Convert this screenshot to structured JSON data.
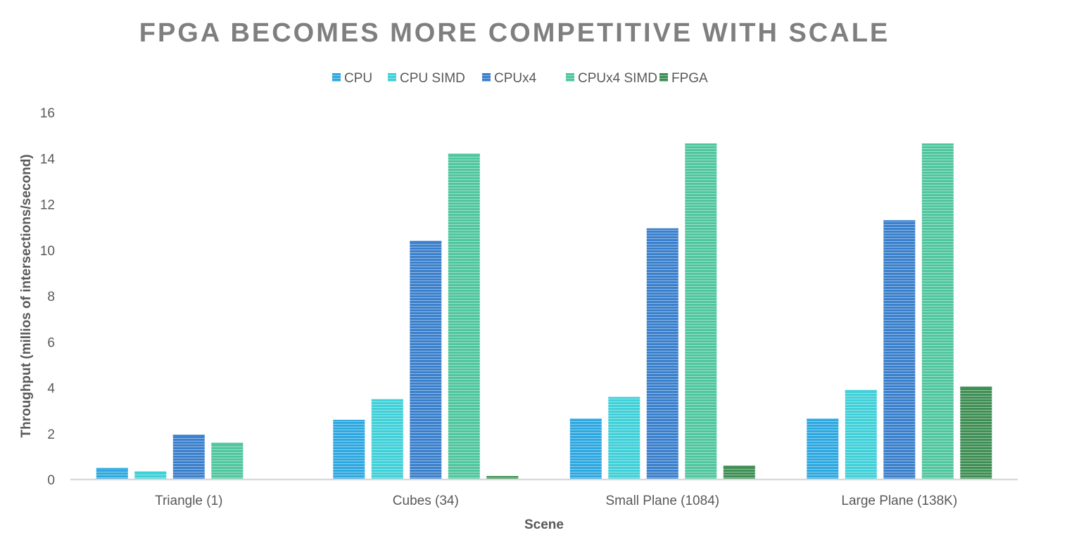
{
  "chart_data": {
    "type": "bar",
    "title": "FPGA BECOMES MORE COMPETITIVE WITH SCALE",
    "xlabel": "Scene",
    "ylabel": "Throughput (millios of intersections/second)",
    "categories": [
      "Triangle (1)",
      "Cubes (34)",
      "Small Plane (1084)",
      "Large Plane (138K)"
    ],
    "ylim": [
      0,
      16
    ],
    "yticks": [
      "0",
      "2",
      "4",
      "6",
      "8",
      "10",
      "12",
      "14",
      "16"
    ],
    "grid": false,
    "legend_position": "top",
    "series": [
      {
        "name": "CPU",
        "color": "#2ea8e0",
        "values": [
          0.5,
          2.6,
          2.65,
          2.65
        ]
      },
      {
        "name": "CPU SIMD",
        "color": "#3fd0d8",
        "values": [
          0.35,
          3.5,
          3.6,
          3.9
        ]
      },
      {
        "name": "CPUx4",
        "color": "#3a80cc",
        "values": [
          1.95,
          10.4,
          10.95,
          11.3
        ]
      },
      {
        "name": "CPUx4 SIMD",
        "color": "#4fc69e",
        "values": [
          1.6,
          14.2,
          14.65,
          14.65
        ]
      },
      {
        "name": "FPGA",
        "color": "#3f8f55",
        "values": [
          0,
          0.15,
          0.6,
          4.05
        ]
      }
    ]
  }
}
